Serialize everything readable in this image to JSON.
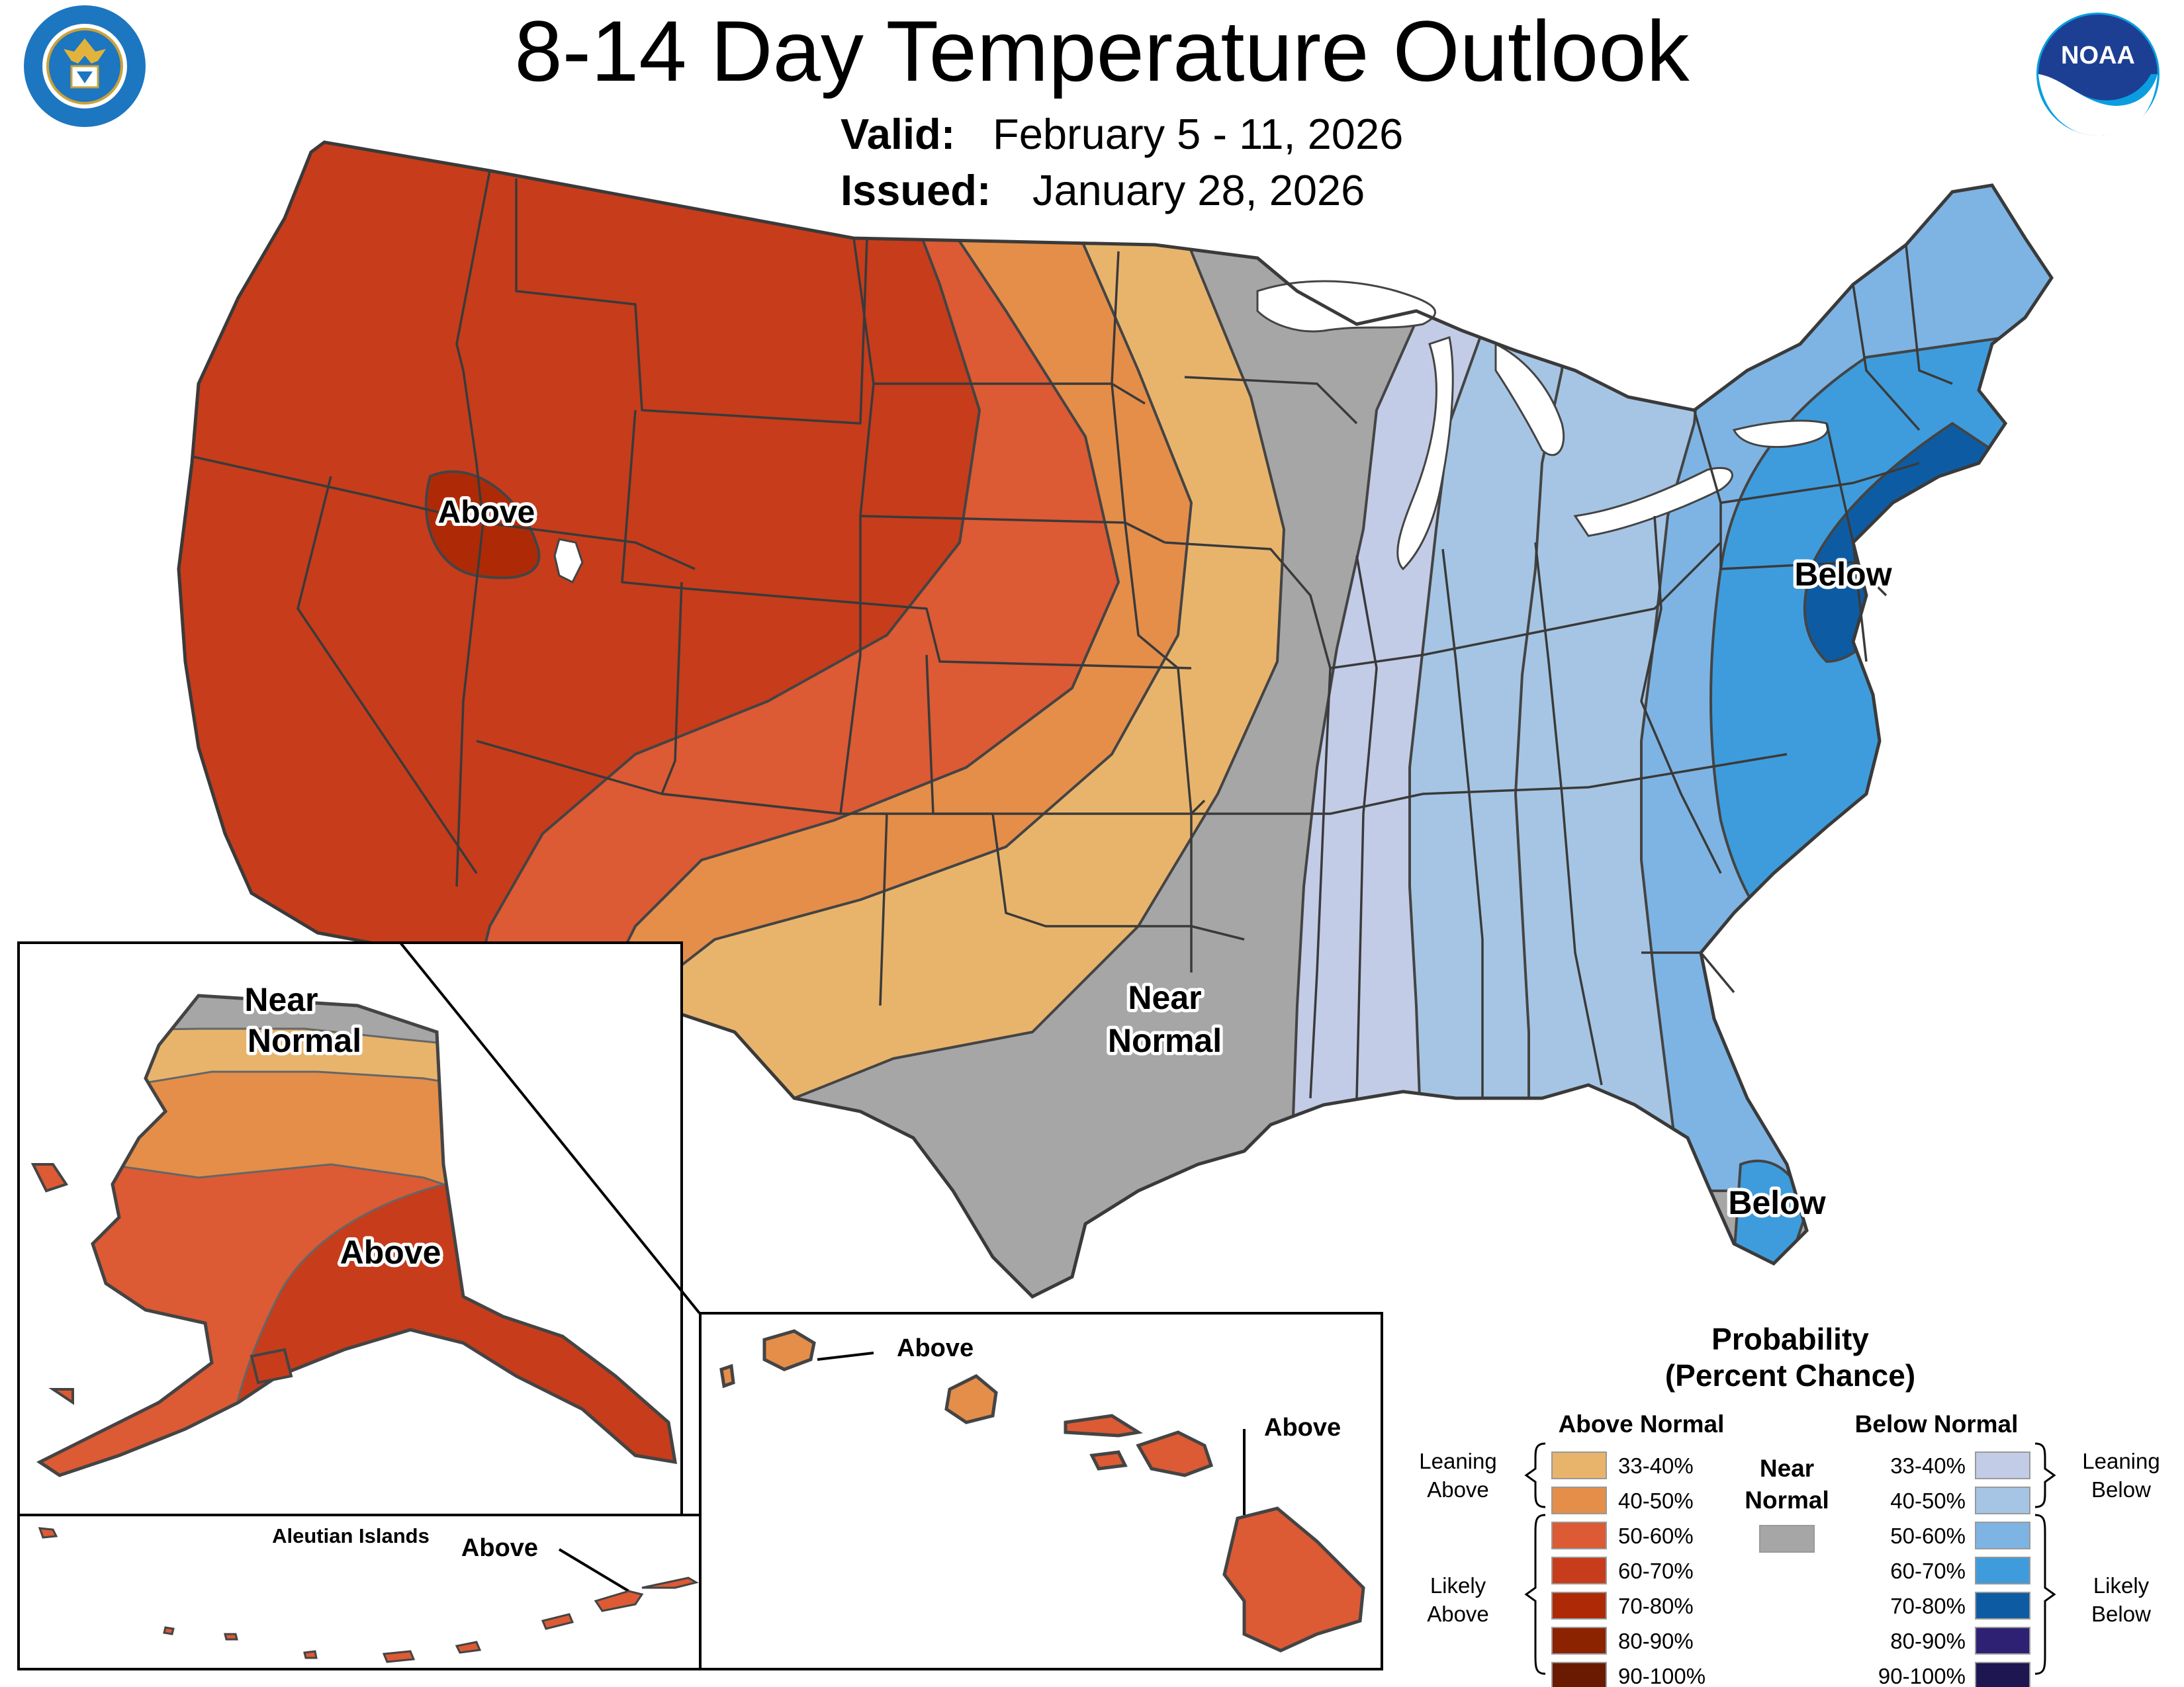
{
  "header": {
    "title": "8-14 Day Temperature Outlook",
    "valid_label": "Valid:",
    "valid_value": "February 5 - 11, 2026",
    "issued_label": "Issued:",
    "issued_value": "January 28, 2026"
  },
  "logos": {
    "commerce": {
      "icon": "commerce-seal-icon",
      "text": "DEPARTMENT OF COMMERCE · UNITED STATES OF AMERICA"
    },
    "noaa": {
      "icon": "noaa-logo-icon",
      "text": "NOAA"
    }
  },
  "map_labels": {
    "conus_above": "Above",
    "conus_near_line1": "Near",
    "conus_near_line2": "Normal",
    "conus_below_ne": "Below",
    "conus_below_fl": "Below",
    "alaska_near_line1": "Near",
    "alaska_near_line2": "Normal",
    "alaska_above": "Above",
    "aleutian_title": "Aleutian Islands",
    "aleutian_above": "Above",
    "hawaii_above_kauai": "Above",
    "hawaii_above_big": "Above"
  },
  "legend": {
    "title_line1": "Probability",
    "title_line2": "(Percent Chance)",
    "above_header": "Above Normal",
    "below_header": "Below Normal",
    "near_line1": "Near",
    "near_line2": "Normal",
    "near_color": "#a6a6a6",
    "leaning_above_line1": "Leaning",
    "leaning_above_line2": "Above",
    "likely_above_line1": "Likely",
    "likely_above_line2": "Above",
    "leaning_below_line1": "Leaning",
    "leaning_below_line2": "Below",
    "likely_below_line1": "Likely",
    "likely_below_line2": "Below",
    "above": [
      {
        "range": "33-40%",
        "color": "#e8b46c"
      },
      {
        "range": "40-50%",
        "color": "#e48e4a"
      },
      {
        "range": "50-60%",
        "color": "#dc5a34"
      },
      {
        "range": "60-70%",
        "color": "#c73c1b"
      },
      {
        "range": "70-80%",
        "color": "#ae2a07"
      },
      {
        "range": "80-90%",
        "color": "#8c2300"
      },
      {
        "range": "90-100%",
        "color": "#6a1a00"
      }
    ],
    "below": [
      {
        "range": "33-40%",
        "color": "#c2cce6"
      },
      {
        "range": "40-50%",
        "color": "#a6c5e4"
      },
      {
        "range": "50-60%",
        "color": "#7eb4e3"
      },
      {
        "range": "60-70%",
        "color": "#3e9cdc"
      },
      {
        "range": "70-80%",
        "color": "#0d5ca3"
      },
      {
        "range": "80-90%",
        "color": "#2e2173"
      },
      {
        "range": "90-100%",
        "color": "#1d1650"
      }
    ]
  }
}
